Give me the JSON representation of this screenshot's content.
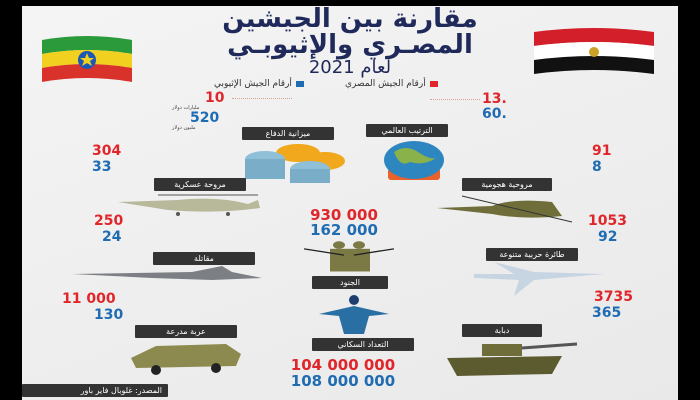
{
  "title": {
    "line1": "مقارنة بين الجيشين",
    "line2": "المصـري والإثيوبـي",
    "line3": "لعام 2021"
  },
  "legend": {
    "egypt": "أرقام الجيش المصري",
    "ethiopia": "أرقام الجيش الإثيوبي"
  },
  "colors": {
    "egypt": "#e0262b",
    "ethiopia": "#1f6cb3",
    "label_bg": "#333333",
    "title": "#1f2a5a"
  },
  "items": {
    "ranking": {
      "label": "الترتيب العالمي",
      "egypt": "13.",
      "ethiopia": "60.",
      "icon": "globe-icon"
    },
    "budget": {
      "label": "ميزانية الدفاع",
      "egypt": "10",
      "egypt_unit": "مليارات دولار",
      "ethiopia": "520",
      "ethiopia_unit": "مليون دولار",
      "icon": "coins-icon"
    },
    "military_helicopter": {
      "label": "مروحة عسكرية",
      "egypt": "304",
      "ethiopia": "33",
      "icon": "helicopter-icon"
    },
    "attack_helicopter": {
      "label": "مروحية هجومية",
      "egypt": "91",
      "ethiopia": "8",
      "icon": "attack-helicopter-icon"
    },
    "fighter": {
      "label": "مقاتلة",
      "egypt": "250",
      "ethiopia": "24",
      "icon": "fighter-jet-icon"
    },
    "aircraft": {
      "label": "طائرة حربية متنوعة",
      "egypt": "1053",
      "ethiopia": "92",
      "icon": "jet-icon"
    },
    "soldiers": {
      "label": "الجنود",
      "egypt": "930 000",
      "ethiopia": "162 000",
      "icon": "soldiers-icon"
    },
    "armored": {
      "label": "عربة مدرعة",
      "egypt": "11 000",
      "ethiopia": "130",
      "icon": "armored-vehicle-icon"
    },
    "tank": {
      "label": "دبابة",
      "egypt": "3735",
      "ethiopia": "365",
      "icon": "tank-icon"
    },
    "population": {
      "label": "التعداد السكاني",
      "egypt": "104 000 000",
      "ethiopia": "108 000 000",
      "icon": "population-icon"
    }
  },
  "source": "المصدر: غلوبال فاير باور"
}
